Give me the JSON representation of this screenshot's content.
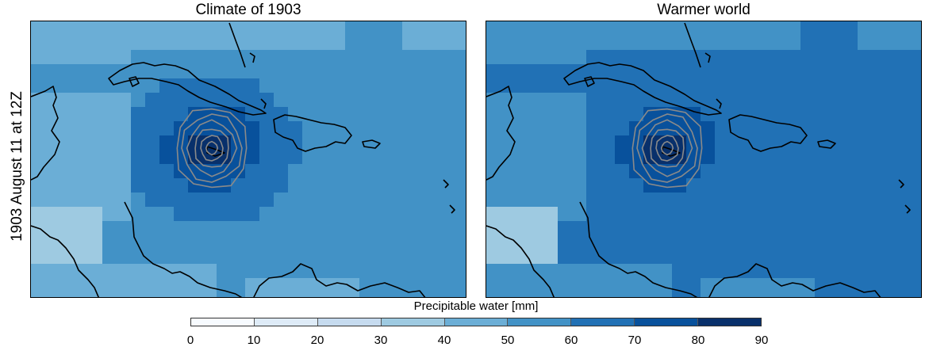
{
  "side_label": "1903 August 11 at 12Z",
  "panels": [
    {
      "title": "Climate of 1903",
      "shift": 0
    },
    {
      "title": "Warmer world",
      "shift": 1
    }
  ],
  "colorbar": {
    "label": "Precipitable water [mm]",
    "ticks": [
      "0",
      "10",
      "20",
      "30",
      "40",
      "50",
      "60",
      "70",
      "80",
      "90"
    ],
    "colors": [
      "#f7fbff",
      "#deebf7",
      "#c6dbef",
      "#9ecae1",
      "#6baed6",
      "#4292c6",
      "#2171b5",
      "#08519c",
      "#08306b"
    ]
  }
}
